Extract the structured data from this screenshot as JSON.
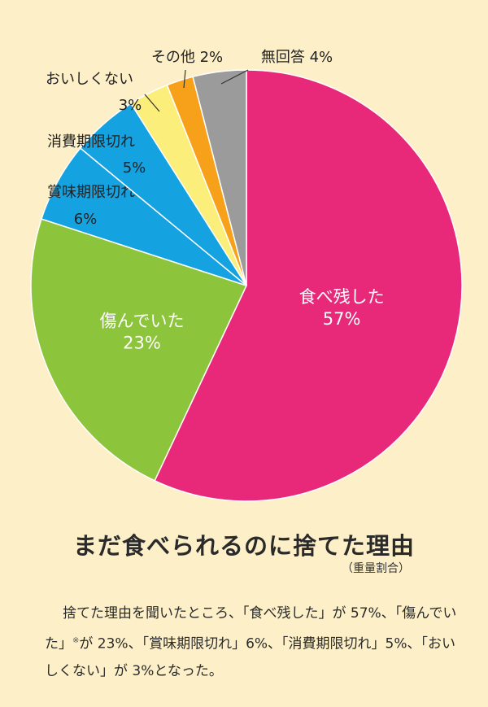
{
  "chart_data": {
    "type": "pie",
    "title": "まだ食べられるのに捨てた理由",
    "subtitle": "（重量割合）",
    "slices": [
      {
        "label": "食べ残した",
        "value": 57,
        "value_label": "57%",
        "color": "#e8297a"
      },
      {
        "label": "傷んでいた",
        "value": 23,
        "value_label": "23%",
        "color": "#8cc43c"
      },
      {
        "label": "賞味期限切れ",
        "value": 6,
        "value_label": "6%",
        "color": "#14a2e0"
      },
      {
        "label": "消費期限切れ",
        "value": 5,
        "value_label": "5%",
        "color": "#14a2e0"
      },
      {
        "label": "おいしくない",
        "value": 3,
        "value_label": "3%",
        "color": "#fbee7a"
      },
      {
        "label": "その他",
        "value": 2,
        "value_label": "2%",
        "color": "#f7a11a"
      },
      {
        "label": "無回答",
        "value": 4,
        "value_label": "4%",
        "color": "#9b9b9b"
      }
    ]
  },
  "body": {
    "text_part1": "捨てた理由を聞いたところ、「食べ残した」が 57%、「傷んでいた」",
    "note_mark": "※",
    "text_part2": "が 23%、「賞味期限切れ」6%、「消費期限切れ」5%、「おいしくない」が 3%となった。"
  }
}
